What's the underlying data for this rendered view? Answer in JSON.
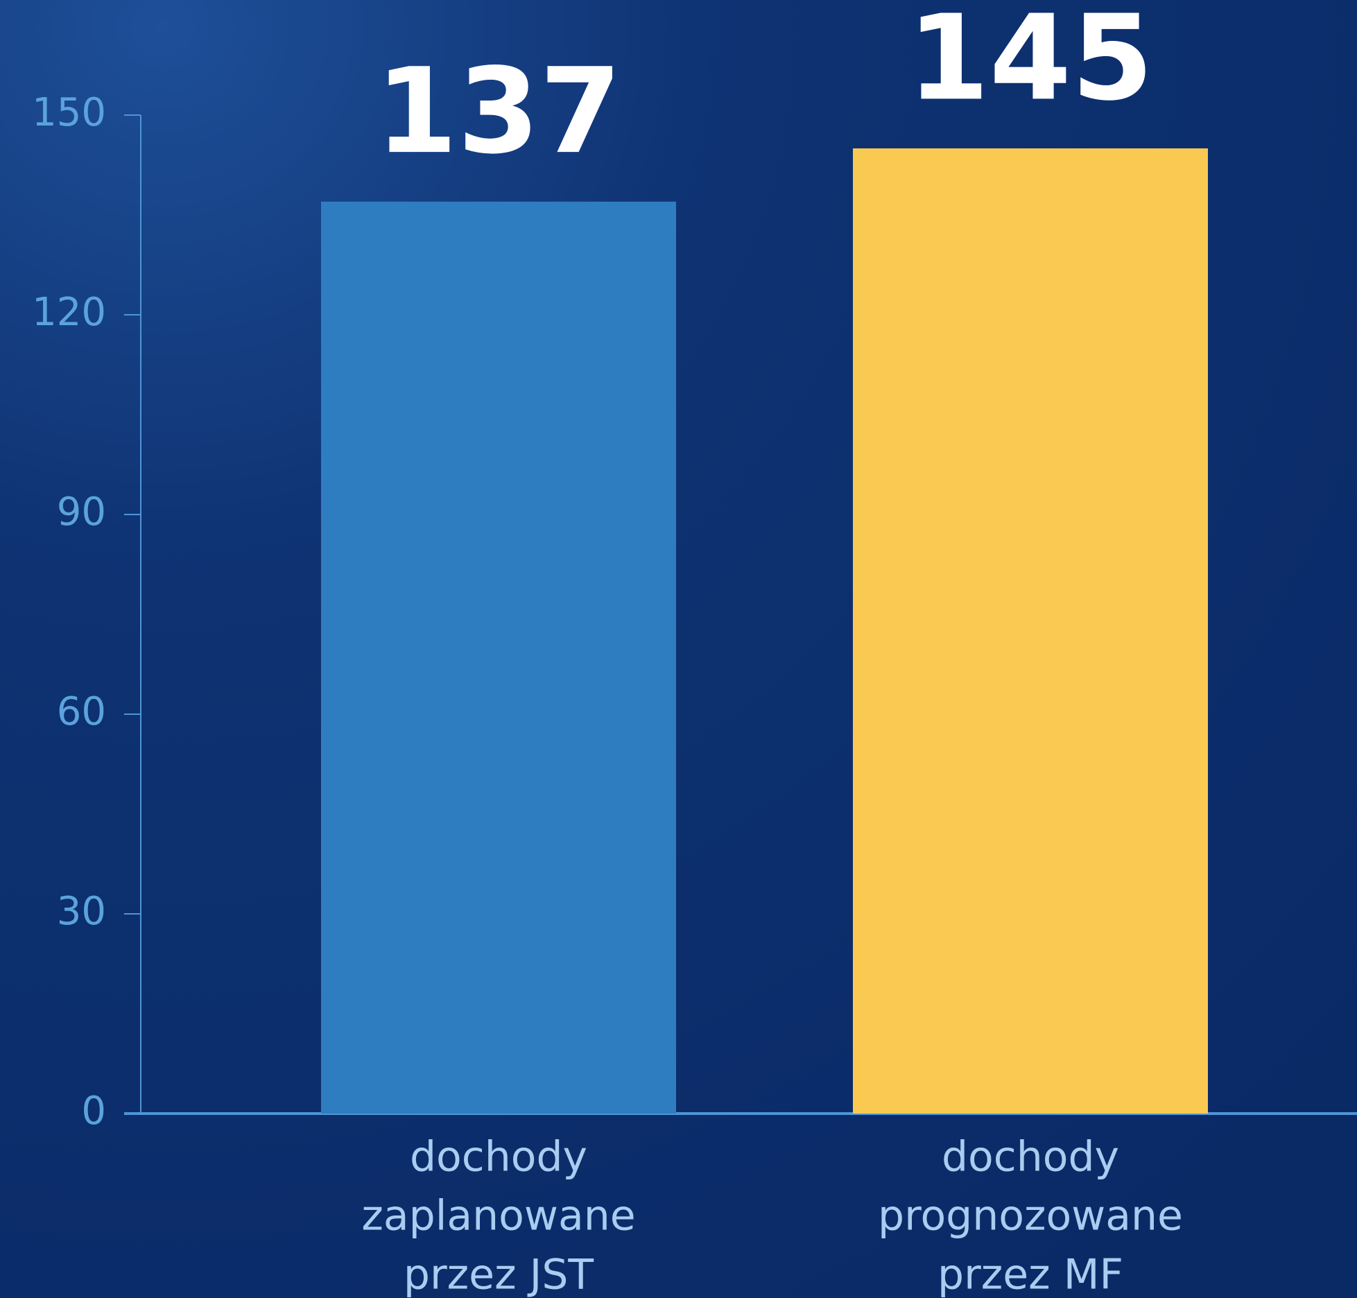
{
  "chart_data": {
    "type": "bar",
    "categories": [
      [
        "dochody",
        "zaplanowane",
        "przez JST"
      ],
      [
        "dochody",
        "prognozowane",
        "przez MF"
      ]
    ],
    "values": [
      137,
      145
    ],
    "colors": [
      "#2f7dc1",
      "#fac952"
    ],
    "ylim": [
      0,
      150
    ],
    "yticks": [
      0,
      30,
      60,
      90,
      120,
      150
    ],
    "grid": false
  }
}
